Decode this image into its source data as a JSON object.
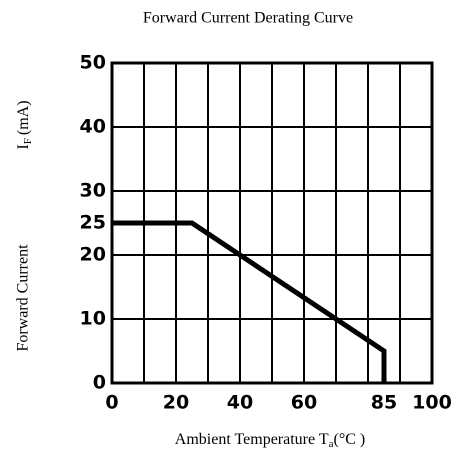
{
  "chart_data": {
    "type": "line",
    "title": "Forward Current Derating Curve",
    "xlabel": "Ambient Temperature",
    "xlabel_symbol": "T",
    "xlabel_subscript": "a",
    "xlabel_unit": "(°C )",
    "ylabel": "Forward Current",
    "ylabel_symbol": "I",
    "ylabel_subscript": "F",
    "ylabel_unit": "(mA)",
    "x": [
      0,
      25,
      85,
      85
    ],
    "values": [
      25,
      25,
      5,
      0
    ],
    "color": "#000000",
    "xlim": [
      0,
      100
    ],
    "xticks": [
      0,
      20,
      40,
      60,
      85,
      100
    ],
    "ylim": [
      0,
      50
    ],
    "yticks": [
      0,
      10,
      20,
      25,
      30,
      40,
      50
    ],
    "grid": true,
    "xgrid": [
      10,
      20,
      30,
      40,
      50,
      60,
      70,
      80,
      90
    ],
    "ygrid": [
      10,
      20,
      30,
      40
    ]
  }
}
